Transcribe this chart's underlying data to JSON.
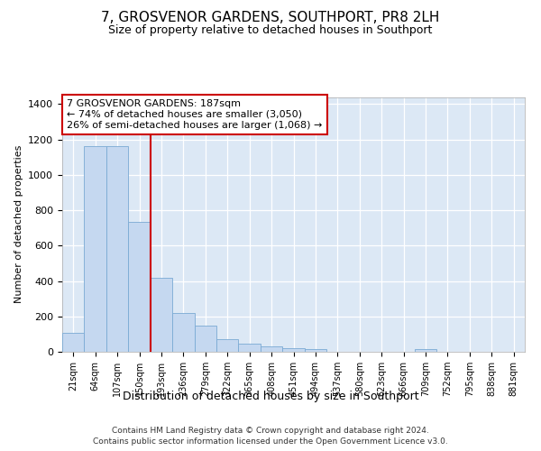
{
  "title": "7, GROSVENOR GARDENS, SOUTHPORT, PR8 2LH",
  "subtitle": "Size of property relative to detached houses in Southport",
  "xlabel": "Distribution of detached houses by size in Southport",
  "ylabel": "Number of detached properties",
  "footer1": "Contains HM Land Registry data © Crown copyright and database right 2024.",
  "footer2": "Contains public sector information licensed under the Open Government Licence v3.0.",
  "annotation_line1": "7 GROSVENOR GARDENS: 187sqm",
  "annotation_line2": "← 74% of detached houses are smaller (3,050)",
  "annotation_line3": "26% of semi-detached houses are larger (1,068) →",
  "categories": [
    "21sqm",
    "64sqm",
    "107sqm",
    "150sqm",
    "193sqm",
    "236sqm",
    "279sqm",
    "322sqm",
    "365sqm",
    "408sqm",
    "451sqm",
    "494sqm",
    "537sqm",
    "580sqm",
    "623sqm",
    "666sqm",
    "709sqm",
    "752sqm",
    "795sqm",
    "838sqm",
    "881sqm"
  ],
  "bar_heights": [
    105,
    1160,
    1160,
    735,
    420,
    220,
    148,
    70,
    48,
    30,
    18,
    15,
    0,
    0,
    0,
    0,
    15,
    0,
    0,
    0,
    0
  ],
  "bin_width": 43,
  "red_line_x": 187,
  "red_line_color": "#cc0000",
  "bar_face_color": "#c5d8f0",
  "bar_edge_color": "#7aaad4",
  "plot_bg_color": "#dce8f5",
  "fig_bg_color": "#ffffff",
  "grid_color": "#ffffff",
  "annotation_box_edge": "#cc0000",
  "annotation_box_face": "#ffffff",
  "yticks": [
    0,
    200,
    400,
    600,
    800,
    1000,
    1200,
    1400
  ],
  "ylim": [
    0,
    1440
  ],
  "title_fontsize": 11,
  "subtitle_fontsize": 9,
  "tick_fontsize": 8,
  "ylabel_fontsize": 8,
  "xlabel_fontsize": 9,
  "footer_fontsize": 6.5,
  "annot_fontsize": 8
}
